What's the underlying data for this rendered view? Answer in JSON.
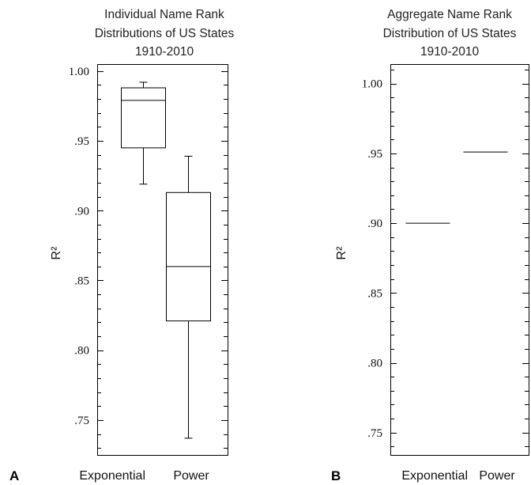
{
  "chart_data": [
    {
      "panel_letter": "A",
      "type": "box",
      "title": [
        "Individual Name Rank",
        "Distributions of US States",
        "1910-2010"
      ],
      "xlabel": "",
      "ylabel": "R²",
      "ylim": [
        0.725,
        1.005
      ],
      "major_ticks": [
        0.75,
        0.8,
        0.85,
        0.9,
        0.95,
        1.0
      ],
      "minor_tick_step": 0.01,
      "tick_labels": [
        ".75",
        ".80",
        ".85",
        ".90",
        ".95",
        "1.00"
      ],
      "categories": [
        "Exponential",
        "Power"
      ],
      "boxes": [
        {
          "category": "Exponential",
          "min": 0.919,
          "q1": 0.945,
          "median": 0.979,
          "q3": 0.988,
          "max": 0.992
        },
        {
          "category": "Power",
          "min": 0.737,
          "q1": 0.821,
          "median": 0.86,
          "q3": 0.913,
          "max": 0.939
        }
      ],
      "grid": false
    },
    {
      "panel_letter": "B",
      "type": "box",
      "title": [
        "Aggregate Name Rank",
        "Distribution of US States",
        "1910-2010"
      ],
      "xlabel": "",
      "ylabel": "R²",
      "ylim": [
        0.734,
        1.014
      ],
      "major_ticks": [
        0.75,
        0.8,
        0.85,
        0.9,
        0.95,
        1.0
      ],
      "minor_tick_step": 0.01,
      "tick_labels": [
        ".75",
        ".80",
        ".85",
        ".90",
        ".95",
        "1.00"
      ],
      "categories": [
        "Exponential",
        "Power"
      ],
      "values": [
        {
          "category": "Exponential",
          "value": 0.9
        },
        {
          "category": "Power",
          "value": 0.951
        }
      ],
      "grid": false
    }
  ]
}
